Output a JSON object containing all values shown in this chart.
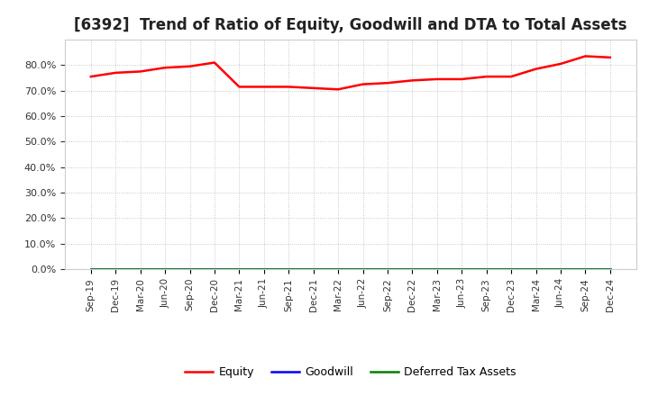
{
  "title": "[6392]  Trend of Ratio of Equity, Goodwill and DTA to Total Assets",
  "x_labels": [
    "Sep-19",
    "Dec-19",
    "Mar-20",
    "Jun-20",
    "Sep-20",
    "Dec-20",
    "Mar-21",
    "Jun-21",
    "Sep-21",
    "Dec-21",
    "Mar-22",
    "Jun-22",
    "Sep-22",
    "Dec-22",
    "Mar-23",
    "Jun-23",
    "Sep-23",
    "Dec-23",
    "Mar-24",
    "Jun-24",
    "Sep-24",
    "Dec-24"
  ],
  "equity": [
    75.5,
    77.0,
    77.5,
    79.0,
    79.5,
    81.0,
    71.5,
    71.5,
    71.5,
    71.0,
    70.5,
    72.5,
    73.0,
    74.0,
    74.5,
    74.5,
    75.5,
    75.5,
    78.5,
    80.5,
    83.5,
    83.0
  ],
  "goodwill": [
    0.0,
    0.0,
    0.0,
    0.0,
    0.0,
    0.0,
    0.0,
    0.0,
    0.0,
    0.0,
    0.0,
    0.0,
    0.0,
    0.0,
    0.0,
    0.0,
    0.0,
    0.0,
    0.0,
    0.0,
    0.0,
    0.0
  ],
  "dta": [
    0.0,
    0.0,
    0.0,
    0.0,
    0.0,
    0.0,
    0.0,
    0.0,
    0.0,
    0.0,
    0.0,
    0.0,
    0.0,
    0.0,
    0.0,
    0.0,
    0.0,
    0.0,
    0.0,
    0.0,
    0.0,
    0.0
  ],
  "equity_color": "#FF0000",
  "goodwill_color": "#0000FF",
  "dta_color": "#008000",
  "ylim": [
    0,
    90
  ],
  "yticks": [
    0,
    10,
    20,
    30,
    40,
    50,
    60,
    70,
    80
  ],
  "bg_color": "#FFFFFF",
  "plot_bg_color": "#FFFFFF",
  "grid_color": "#BBBBBB",
  "title_fontsize": 12,
  "legend_labels": [
    "Equity",
    "Goodwill",
    "Deferred Tax Assets"
  ]
}
